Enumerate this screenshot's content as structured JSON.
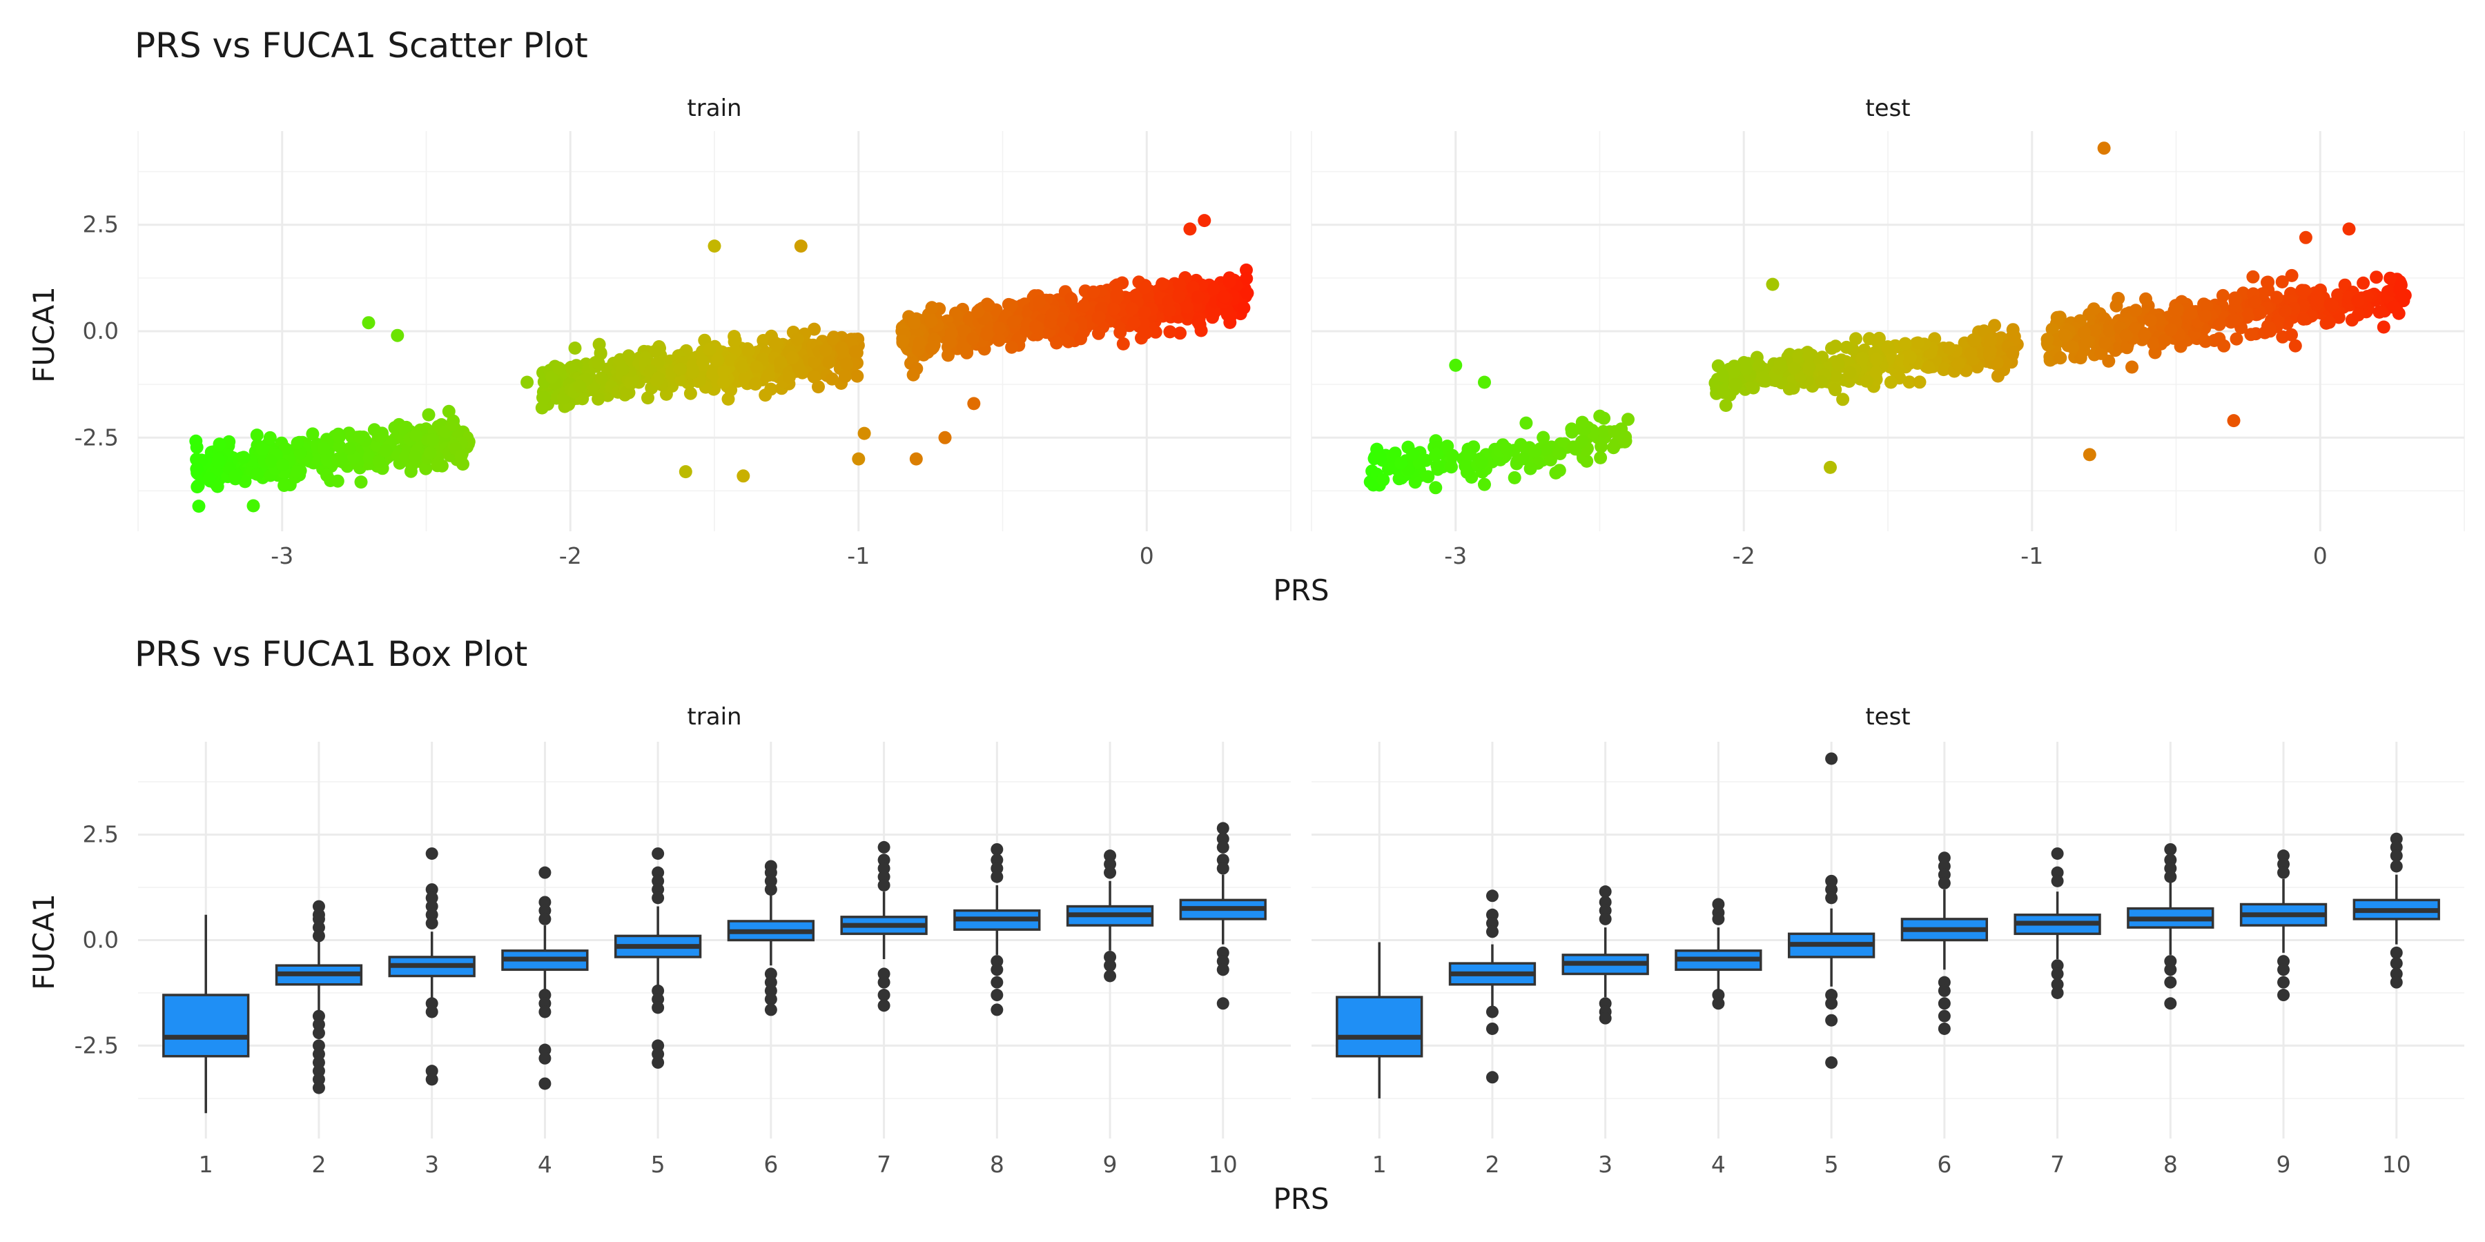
{
  "chart_data": [
    {
      "type": "scatter",
      "title": "PRS vs FUCA1 Scatter Plot",
      "xlabel": "PRS",
      "ylabel": "FUCA1",
      "panels": [
        "train",
        "test"
      ],
      "xlim": [
        -3.5,
        0.5
      ],
      "ylim": [
        -4.7,
        4.7
      ],
      "x_ticks": [
        -3,
        -2,
        -1,
        0
      ],
      "x_tick_labels": [
        "-3",
        "-2",
        "-1",
        "0"
      ],
      "y_ticks": [
        -2.5,
        0,
        2.5
      ],
      "y_tick_labels": [
        "-2.5",
        "0.0",
        "2.5"
      ],
      "color_scale": {
        "low": "#33ff00",
        "mid": "#c8b400",
        "high": "#ff1a00",
        "by": "PRS"
      },
      "grid": true,
      "legend": "none",
      "clusters": {
        "train": [
          {
            "x_range": [
              -3.3,
              -2.35
            ],
            "y_center": -2.9,
            "y_spread": 0.55,
            "slope": 0.75,
            "n": 400
          },
          {
            "x_range": [
              -2.1,
              -1.0
            ],
            "y_center": -0.9,
            "y_spread": 0.6,
            "slope": 0.75,
            "n": 520
          },
          {
            "x_range": [
              -0.85,
              0.35
            ],
            "y_center": 0.35,
            "y_spread": 0.6,
            "slope": 0.85,
            "n": 650
          }
        ],
        "test": [
          {
            "x_range": [
              -3.3,
              -2.4
            ],
            "y_center": -2.9,
            "y_spread": 0.55,
            "slope": 0.75,
            "n": 160
          },
          {
            "x_range": [
              -2.1,
              -1.05
            ],
            "y_center": -0.8,
            "y_spread": 0.55,
            "slope": 0.7,
            "n": 360
          },
          {
            "x_range": [
              -0.95,
              0.3
            ],
            "y_center": 0.35,
            "y_spread": 0.6,
            "slope": 0.85,
            "n": 480
          }
        ]
      },
      "outliers": {
        "train": [
          [
            -2.7,
            0.2
          ],
          [
            -2.6,
            -0.1
          ],
          [
            -1.5,
            2.0
          ],
          [
            -1.2,
            2.0
          ],
          [
            -1.4,
            -3.4
          ],
          [
            -1.6,
            -3.3
          ],
          [
            -1.0,
            -3.0
          ],
          [
            -0.98,
            -2.4
          ],
          [
            -0.8,
            -3.0
          ],
          [
            -0.7,
            -2.5
          ],
          [
            0.2,
            2.6
          ],
          [
            0.15,
            2.4
          ],
          [
            -3.1,
            -4.1
          ],
          [
            -2.15,
            -1.2
          ],
          [
            -0.6,
            -1.7
          ]
        ],
        "test": [
          [
            -0.75,
            4.3
          ],
          [
            -0.8,
            -2.9
          ],
          [
            -1.7,
            -3.2
          ],
          [
            -3.0,
            -0.8
          ],
          [
            -2.9,
            -1.2
          ],
          [
            0.1,
            2.4
          ],
          [
            -0.05,
            2.2
          ],
          [
            -0.3,
            -2.1
          ],
          [
            -2.9,
            -3.6
          ],
          [
            -1.9,
            1.1
          ]
        ]
      }
    },
    {
      "type": "box",
      "title": "PRS vs FUCA1 Box Plot",
      "xlabel": "PRS",
      "ylabel": "FUCA1",
      "panels": [
        "train",
        "test"
      ],
      "categories": [
        "1",
        "2",
        "3",
        "4",
        "5",
        "6",
        "7",
        "8",
        "9",
        "10"
      ],
      "ylim": [
        -4.7,
        4.7
      ],
      "y_ticks": [
        -2.5,
        0,
        2.5
      ],
      "y_tick_labels": [
        "-2.5",
        "0.0",
        "2.5"
      ],
      "fill": "#1f8ff5",
      "grid": true,
      "legend": "none",
      "boxes": {
        "train": [
          {
            "q1": -2.75,
            "median": -2.3,
            "q3": -1.3,
            "whisker_low": -4.1,
            "whisker_high": 0.6,
            "outliers": []
          },
          {
            "q1": -1.05,
            "median": -0.8,
            "q3": -0.6,
            "whisker_low": -1.7,
            "whisker_high": -0.0,
            "outliers": [
              0.8,
              0.6,
              0.5,
              0.3,
              0.1,
              -1.8,
              -2.0,
              -2.2,
              -2.5,
              -2.7,
              -2.9,
              -3.1,
              -3.3,
              -3.5
            ]
          },
          {
            "q1": -0.85,
            "median": -0.6,
            "q3": -0.4,
            "whisker_low": -1.45,
            "whisker_high": 0.2,
            "outliers": [
              2.05,
              1.2,
              1.0,
              0.8,
              0.6,
              0.4,
              -1.5,
              -1.7,
              -3.1,
              -3.3
            ]
          },
          {
            "q1": -0.7,
            "median": -0.45,
            "q3": -0.25,
            "whisker_low": -1.2,
            "whisker_high": 0.35,
            "outliers": [
              1.6,
              0.9,
              0.7,
              0.5,
              -1.3,
              -1.5,
              -1.7,
              -2.6,
              -2.8,
              -3.4
            ]
          },
          {
            "q1": -0.4,
            "median": -0.15,
            "q3": 0.1,
            "whisker_low": -1.1,
            "whisker_high": 0.8,
            "outliers": [
              2.05,
              1.6,
              1.4,
              1.2,
              1.0,
              -1.2,
              -1.4,
              -1.6,
              -2.5,
              -2.7,
              -2.9
            ]
          },
          {
            "q1": 0.0,
            "median": 0.2,
            "q3": 0.45,
            "whisker_low": -0.6,
            "whisker_high": 1.1,
            "outliers": [
              1.75,
              1.6,
              1.4,
              1.2,
              -0.8,
              -1.0,
              -1.2,
              -1.4,
              -1.65
            ]
          },
          {
            "q1": 0.15,
            "median": 0.35,
            "q3": 0.55,
            "whisker_low": -0.45,
            "whisker_high": 1.15,
            "outliers": [
              2.2,
              1.9,
              1.7,
              1.5,
              1.3,
              -0.8,
              -1.0,
              -1.3,
              -1.55
            ]
          },
          {
            "q1": 0.25,
            "median": 0.5,
            "q3": 0.7,
            "whisker_low": -0.35,
            "whisker_high": 1.3,
            "outliers": [
              2.15,
              1.9,
              1.7,
              1.5,
              -0.5,
              -0.7,
              -1.0,
              -1.3,
              -1.65
            ]
          },
          {
            "q1": 0.35,
            "median": 0.6,
            "q3": 0.8,
            "whisker_low": -0.25,
            "whisker_high": 1.4,
            "outliers": [
              2.0,
              1.8,
              1.6,
              -0.4,
              -0.6,
              -0.85
            ]
          },
          {
            "q1": 0.5,
            "median": 0.75,
            "q3": 0.95,
            "whisker_low": -0.1,
            "whisker_high": 1.55,
            "outliers": [
              2.65,
              2.4,
              2.2,
              1.9,
              1.7,
              -0.3,
              -0.5,
              -0.7,
              -1.5
            ]
          }
        ],
        "test": [
          {
            "q1": -2.75,
            "median": -2.3,
            "q3": -1.35,
            "whisker_low": -3.75,
            "whisker_high": -0.05,
            "outliers": []
          },
          {
            "q1": -1.05,
            "median": -0.8,
            "q3": -0.55,
            "whisker_low": -1.6,
            "whisker_high": -0.1,
            "outliers": [
              1.05,
              0.6,
              0.4,
              0.2,
              -1.7,
              -2.1,
              -3.25
            ]
          },
          {
            "q1": -0.8,
            "median": -0.55,
            "q3": -0.35,
            "whisker_low": -1.35,
            "whisker_high": 0.3,
            "outliers": [
              1.15,
              0.9,
              0.7,
              0.5,
              -1.5,
              -1.7,
              -1.85
            ]
          },
          {
            "q1": -0.7,
            "median": -0.45,
            "q3": -0.25,
            "whisker_low": -1.2,
            "whisker_high": 0.3,
            "outliers": [
              0.85,
              0.65,
              0.5,
              -1.3,
              -1.5
            ]
          },
          {
            "q1": -0.4,
            "median": -0.1,
            "q3": 0.15,
            "whisker_low": -1.1,
            "whisker_high": 0.75,
            "outliers": [
              4.3,
              1.4,
              1.2,
              1.0,
              -1.3,
              -1.5,
              -1.9,
              -2.9
            ]
          },
          {
            "q1": 0.0,
            "median": 0.25,
            "q3": 0.5,
            "whisker_low": -0.7,
            "whisker_high": 1.2,
            "outliers": [
              1.95,
              1.75,
              1.55,
              1.35,
              -1.0,
              -1.2,
              -1.5,
              -1.8,
              -2.1
            ]
          },
          {
            "q1": 0.15,
            "median": 0.4,
            "q3": 0.6,
            "whisker_low": -0.45,
            "whisker_high": 1.15,
            "outliers": [
              2.05,
              1.6,
              1.4,
              -0.6,
              -0.8,
              -1.05,
              -1.25
            ]
          },
          {
            "q1": 0.3,
            "median": 0.5,
            "q3": 0.75,
            "whisker_low": -0.35,
            "whisker_high": 1.4,
            "outliers": [
              2.15,
              1.9,
              1.7,
              1.5,
              -0.5,
              -0.7,
              -1.0,
              -1.5
            ]
          },
          {
            "q1": 0.35,
            "median": 0.6,
            "q3": 0.85,
            "whisker_low": -0.3,
            "whisker_high": 1.45,
            "outliers": [
              2.0,
              1.8,
              1.6,
              -0.5,
              -0.7,
              -1.0,
              -1.3
            ]
          },
          {
            "q1": 0.5,
            "median": 0.7,
            "q3": 0.95,
            "whisker_low": -0.1,
            "whisker_high": 1.55,
            "outliers": [
              2.4,
              2.2,
              2.0,
              1.75,
              -0.3,
              -0.55,
              -0.8,
              -1.0
            ]
          }
        ]
      }
    }
  ]
}
